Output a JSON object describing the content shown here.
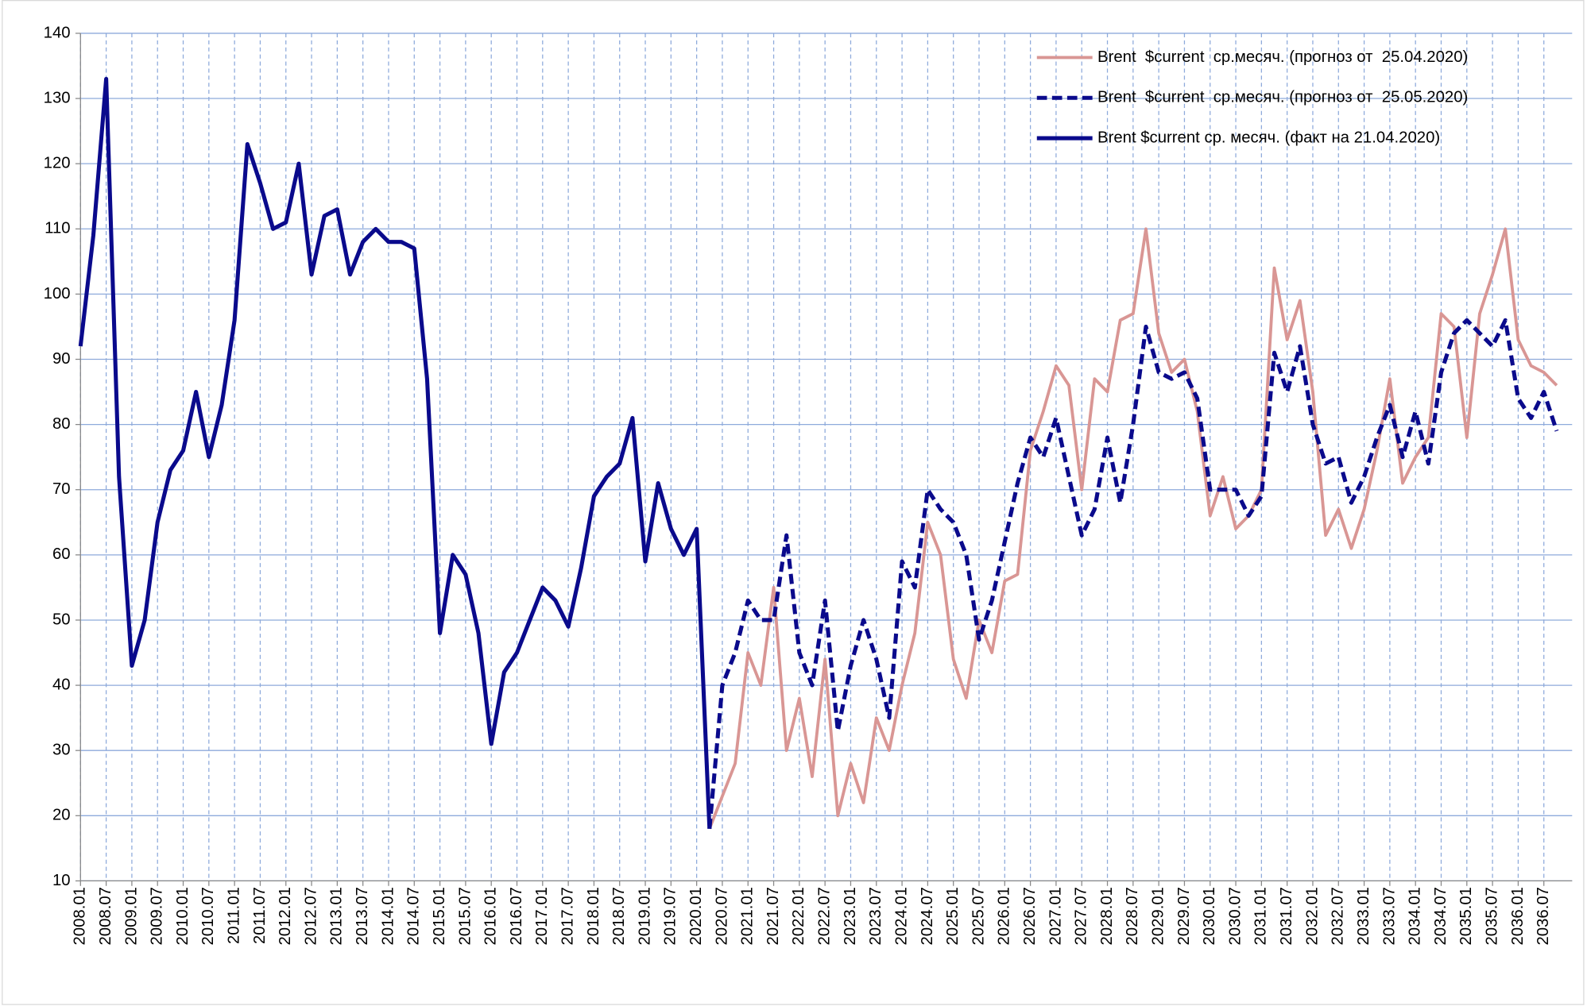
{
  "chart_data": {
    "type": "line",
    "categories": [
      "2008.01",
      null,
      "2008.07",
      null,
      "2009.01",
      null,
      "2009.07",
      null,
      "2010.01",
      null,
      "2010.07",
      null,
      "2011.01",
      null,
      "2011.07",
      null,
      "2012.01",
      null,
      "2012.07",
      null,
      "2013.01",
      null,
      "2013.07",
      null,
      "2014.01",
      null,
      "2014.07",
      null,
      "2015.01",
      null,
      "2015.07",
      null,
      "2016.01",
      null,
      "2016.07",
      null,
      "2017.01",
      null,
      "2017.07",
      null,
      "2018.01",
      null,
      "2018.07",
      null,
      "2019.01",
      null,
      "2019.07",
      null,
      "2020.01",
      null,
      "2020.07",
      null,
      "2021.01",
      null,
      "2021.07",
      null,
      "2022.01",
      null,
      "2022.07",
      null,
      "2023.01",
      null,
      "2023.07",
      null,
      "2024.01",
      null,
      "2024.07",
      null,
      "2025.01",
      null,
      "2025.07",
      null,
      "2026.01",
      null,
      "2026.07",
      null,
      "2027.01",
      null,
      "2027.07",
      null,
      "2028.01",
      null,
      "2028.07",
      null,
      "2029.01",
      null,
      "2029.07",
      null,
      "2030.01",
      null,
      "2030.07",
      null,
      "2031.01",
      null,
      "2031.07",
      null,
      "2032.01",
      null,
      "2032.07",
      null,
      "2033.01",
      null,
      "2033.07",
      null,
      "2034.01",
      null,
      "2034.07",
      null,
      "2035.01",
      null,
      "2035.07",
      null,
      "2036.01",
      null,
      "2036.07",
      null
    ],
    "series": [
      {
        "name": "Brent  $current  ср.месяч. (прогноз от  25.04.2020)",
        "color": "#d99694",
        "line_style": "solid",
        "values": [
          null,
          null,
          null,
          null,
          null,
          null,
          null,
          null,
          null,
          null,
          null,
          null,
          null,
          null,
          null,
          null,
          null,
          null,
          null,
          null,
          null,
          null,
          null,
          null,
          null,
          null,
          null,
          null,
          null,
          null,
          null,
          null,
          null,
          null,
          null,
          null,
          null,
          null,
          null,
          null,
          null,
          null,
          null,
          null,
          null,
          null,
          null,
          null,
          null,
          18,
          23,
          28,
          45,
          40,
          55,
          30,
          38,
          26,
          44,
          20,
          28,
          22,
          35,
          30,
          40,
          48,
          65,
          60,
          44,
          38,
          50,
          45,
          56,
          57,
          76,
          82,
          89,
          86,
          70,
          87,
          85,
          96,
          97,
          110,
          94,
          88,
          90,
          82,
          66,
          72,
          64,
          66,
          70,
          104,
          93,
          99,
          85,
          63,
          67,
          61,
          67,
          76,
          87,
          71,
          75,
          78,
          97,
          95,
          78,
          97,
          103,
          110,
          93,
          89,
          88,
          86
        ]
      },
      {
        "name": "Brent  $current  ср.месяч. (прогноз от  25.05.2020)",
        "color": "#0a0a8c",
        "line_style": "dashed",
        "values": [
          null,
          null,
          null,
          null,
          null,
          null,
          null,
          null,
          null,
          null,
          null,
          null,
          null,
          null,
          null,
          null,
          null,
          null,
          null,
          null,
          null,
          null,
          null,
          null,
          null,
          null,
          null,
          null,
          null,
          null,
          null,
          null,
          null,
          null,
          null,
          null,
          null,
          null,
          null,
          null,
          null,
          null,
          null,
          null,
          null,
          null,
          null,
          null,
          null,
          18,
          40,
          45,
          53,
          50,
          50,
          63,
          45,
          40,
          53,
          33,
          43,
          50,
          44,
          35,
          59,
          55,
          70,
          67,
          65,
          60,
          47,
          53,
          62,
          71,
          78,
          75,
          81,
          72,
          63,
          67,
          78,
          68,
          80,
          95,
          88,
          87,
          88,
          84,
          70,
          70,
          70,
          66,
          69,
          91,
          85,
          92,
          80,
          74,
          75,
          68,
          72,
          78,
          83,
          75,
          82,
          74,
          88,
          94,
          96,
          94,
          92,
          96,
          84,
          81,
          85,
          79
        ]
      },
      {
        "name": "Brent $current ср. месяч. (факт на 21.04.2020)",
        "color": "#0a0a8c",
        "line_style": "solid",
        "values": [
          92,
          109,
          133,
          72,
          43,
          50,
          65,
          73,
          76,
          85,
          75,
          83,
          96,
          123,
          117,
          110,
          111,
          120,
          103,
          112,
          113,
          103,
          108,
          110,
          108,
          108,
          107,
          87,
          48,
          60,
          57,
          48,
          31,
          42,
          45,
          50,
          55,
          53,
          49,
          58,
          69,
          72,
          74,
          81,
          59,
          71,
          64,
          60,
          64,
          18,
          null,
          null,
          null,
          null,
          null,
          null,
          null,
          null,
          null,
          null,
          null,
          null,
          null,
          null,
          null,
          null,
          null,
          null,
          null,
          null,
          null,
          null,
          null,
          null,
          null,
          null,
          null,
          null,
          null,
          null,
          null,
          null,
          null,
          null,
          null,
          null,
          null,
          null,
          null,
          null,
          null,
          null,
          null,
          null,
          null,
          null,
          null,
          null,
          null,
          null,
          null,
          null,
          null,
          null,
          null,
          null,
          null,
          null,
          null,
          null,
          null,
          null,
          null,
          null,
          null,
          null
        ]
      }
    ],
    "ylim": [
      10,
      140
    ],
    "yticks": [
      10,
      20,
      30,
      40,
      50,
      60,
      70,
      80,
      90,
      100,
      110,
      120,
      130,
      140
    ],
    "grid": true,
    "legend": "upper right"
  }
}
